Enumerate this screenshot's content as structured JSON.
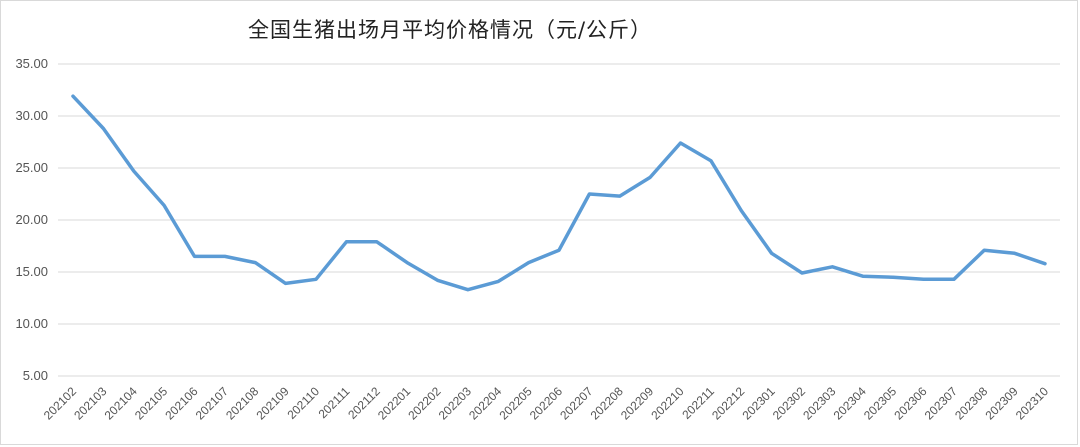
{
  "chart_data": {
    "type": "line",
    "title": "全国生猪出场月平均价格情况（元/公斤）",
    "xlabel": "",
    "ylabel": "",
    "ylim": [
      5,
      35
    ],
    "yticks": [
      "5.00",
      "10.00",
      "15.00",
      "20.00",
      "25.00",
      "30.00",
      "35.00"
    ],
    "grid": true,
    "categories": [
      "202102",
      "202103",
      "202104",
      "202105",
      "202106",
      "202107",
      "202108",
      "202109",
      "202110",
      "202111",
      "202112",
      "202201",
      "202202",
      "202203",
      "202204",
      "202205",
      "202206",
      "202207",
      "202208",
      "202209",
      "202210",
      "202211",
      "202212",
      "202301",
      "202302",
      "202303",
      "202304",
      "202305",
      "202306",
      "202307",
      "202308",
      "202309",
      "202310"
    ],
    "series": [
      {
        "color": "#5b9bd5",
        "values": [
          31.9,
          28.8,
          24.7,
          21.4,
          16.5,
          16.5,
          15.9,
          13.9,
          14.3,
          17.9,
          17.9,
          15.9,
          14.2,
          13.3,
          14.1,
          15.9,
          17.1,
          22.5,
          22.3,
          24.1,
          27.4,
          25.7,
          20.9,
          16.8,
          14.9,
          15.5,
          14.6,
          14.5,
          14.3,
          14.3,
          17.1,
          16.8,
          15.8
        ]
      }
    ]
  }
}
